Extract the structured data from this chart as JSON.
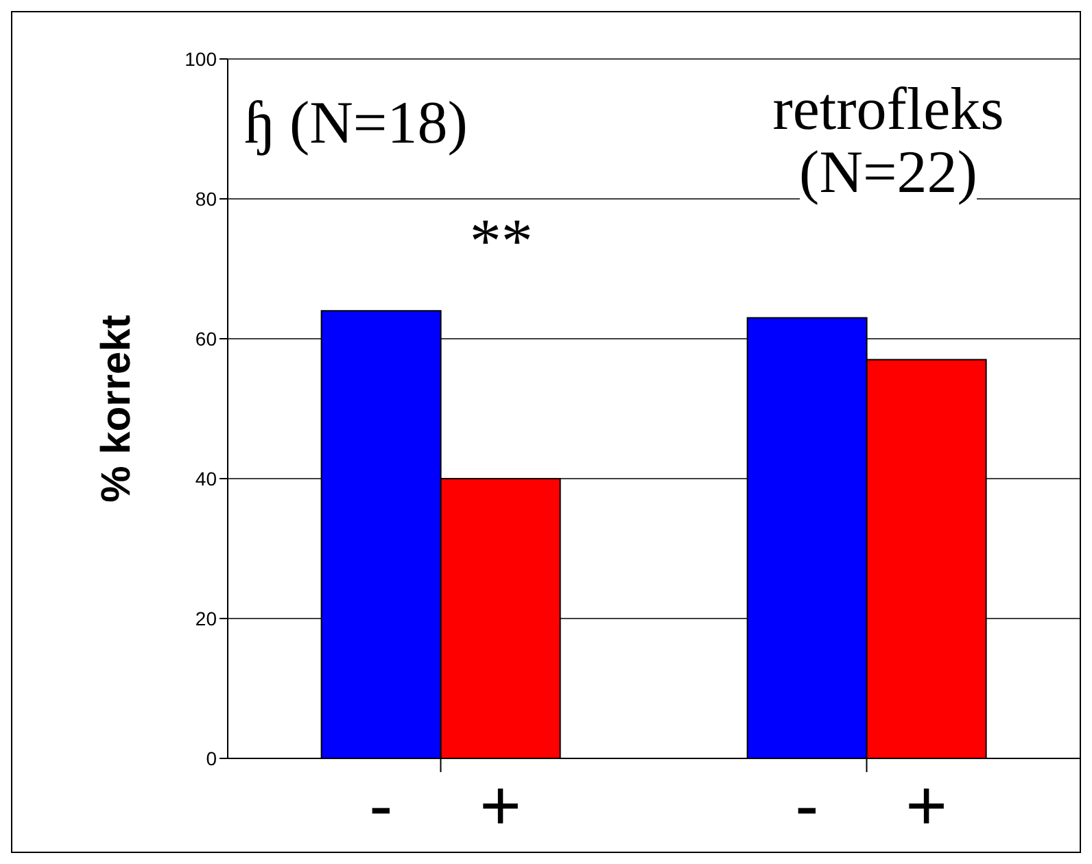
{
  "chart_data": {
    "type": "bar",
    "ylabel": "% korrekt",
    "categories": [
      null,
      null
    ],
    "series": [
      {
        "name": "-",
        "color": "#0000ff",
        "values": [
          64,
          63
        ]
      },
      {
        "name": "+",
        "color": "#ff0000",
        "values": [
          40,
          57
        ]
      }
    ],
    "ylim": [
      0,
      100
    ],
    "yticks": [
      0,
      20,
      40,
      60,
      80,
      100
    ],
    "grid": "y",
    "legend": "bottom",
    "annotations": [
      "ɧ (N=18)",
      "retrofleks (N=22)",
      "**"
    ]
  }
}
